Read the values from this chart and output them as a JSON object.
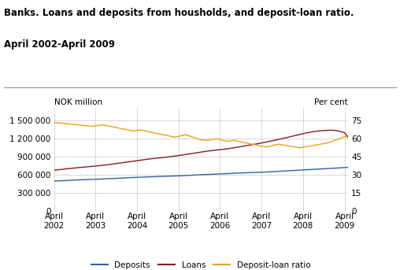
{
  "title_line1": "Banks. Loans and deposits from housholds, and deposit-loan ratio.",
  "title_line2": "April 2002-April 2009",
  "ylabel_left": "NOK million",
  "ylabel_right": "Per cent",
  "xlabel_ticks": [
    "April\n2002",
    "April\n2003",
    "April\n2004",
    "April\n2005",
    "April\n2006",
    "April\n2007",
    "April\n2008",
    "April\n2009"
  ],
  "ylim_left": [
    0,
    1700000
  ],
  "ylim_right": [
    0,
    85
  ],
  "yticks_left": [
    0,
    300000,
    600000,
    900000,
    1200000,
    1500000
  ],
  "yticks_right": [
    0,
    15,
    30,
    45,
    60,
    75
  ],
  "deposits_color": "#3060a0",
  "loans_color": "#8b1a1a",
  "ratio_color": "#e8a020",
  "background_color": "#ffffff",
  "grid_color": "#c8c8c8",
  "legend_labels": [
    "Deposits",
    "Loans",
    "Deposit-loan ratio"
  ],
  "deposits": [
    490000,
    492000,
    494000,
    497000,
    500000,
    503000,
    506000,
    508000,
    511000,
    513000,
    515000,
    517000,
    519000,
    521000,
    524000,
    527000,
    530000,
    532000,
    534000,
    537000,
    540000,
    543000,
    546000,
    549000,
    551000,
    553000,
    556000,
    558000,
    560000,
    562000,
    564000,
    566000,
    568000,
    570000,
    572000,
    574000,
    576000,
    578000,
    581000,
    584000,
    587000,
    590000,
    593000,
    596000,
    598000,
    600000,
    603000,
    606000,
    608000,
    610000,
    613000,
    616000,
    619000,
    622000,
    624000,
    626000,
    628000,
    630000,
    632000,
    634000,
    636000,
    638000,
    641000,
    644000,
    647000,
    651000,
    655000,
    658000,
    661000,
    664000,
    667000,
    671000,
    674000,
    677000,
    680000,
    683000,
    686000,
    690000,
    693000,
    696000,
    700000,
    703000,
    706000,
    710000,
    713000,
    716000
  ],
  "loans": [
    670000,
    675000,
    681000,
    688000,
    694000,
    700000,
    706000,
    712000,
    717000,
    722000,
    728000,
    733000,
    738000,
    744000,
    750000,
    757000,
    764000,
    771000,
    779000,
    787000,
    795000,
    803000,
    811000,
    819000,
    827000,
    835000,
    843000,
    851000,
    858000,
    864000,
    870000,
    876000,
    883000,
    890000,
    897000,
    905000,
    912000,
    920000,
    929000,
    938000,
    947000,
    956000,
    965000,
    974000,
    983000,
    990000,
    997000,
    1004000,
    1010000,
    1016000,
    1024000,
    1032000,
    1041000,
    1050000,
    1060000,
    1070000,
    1080000,
    1090000,
    1100000,
    1110000,
    1121000,
    1132000,
    1144000,
    1156000,
    1168000,
    1181000,
    1194000,
    1207000,
    1220000,
    1234000,
    1247000,
    1261000,
    1275000,
    1287000,
    1298000,
    1308000,
    1316000,
    1322000,
    1327000,
    1330000,
    1332000,
    1330000,
    1322000,
    1308000,
    1290000,
    1220000
  ],
  "ratio": [
    73.0,
    72.8,
    72.5,
    72.2,
    71.9,
    71.6,
    71.3,
    71.0,
    70.7,
    70.4,
    70.1,
    69.8,
    70.2,
    70.6,
    71.0,
    70.5,
    70.0,
    69.4,
    68.8,
    68.2,
    67.6,
    67.1,
    66.5,
    65.9,
    66.5,
    66.8,
    66.2,
    65.6,
    65.0,
    64.4,
    63.8,
    63.2,
    62.6,
    62.0,
    61.4,
    60.8,
    61.5,
    62.2,
    62.9,
    62.0,
    61.0,
    60.0,
    59.0,
    58.5,
    58.2,
    58.5,
    59.0,
    59.5,
    59.0,
    58.0,
    57.5,
    57.8,
    58.2,
    57.6,
    57.0,
    56.4,
    55.8,
    55.2,
    54.6,
    54.0,
    53.4,
    52.8,
    53.0,
    53.8,
    54.5,
    55.0,
    54.5,
    54.0,
    53.5,
    53.0,
    52.5,
    52.0,
    52.5,
    53.0,
    53.5,
    54.0,
    54.5,
    55.0,
    55.5,
    56.0,
    57.0,
    58.0,
    59.0,
    60.0,
    61.5,
    60.5
  ]
}
